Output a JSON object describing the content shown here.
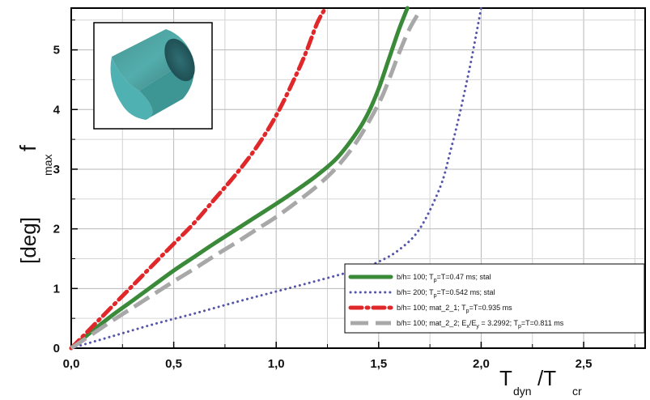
{
  "chart_data": {
    "type": "line",
    "xlabel": {
      "main": "T",
      "sub1": "dyn",
      "mid": "/T",
      "sub2": "cr"
    },
    "ylabel": {
      "main": "f",
      "sub": "max",
      "unit": "[deg]"
    },
    "xlim": [
      0,
      2.8
    ],
    "ylim": [
      0,
      5.7
    ],
    "x_ticks": [
      "0,0",
      "0,5",
      "1,0",
      "1,5",
      "2,0",
      "2,5"
    ],
    "y_ticks": [
      "0",
      "1",
      "2",
      "3",
      "4",
      "5"
    ],
    "grid": true,
    "legend_position": "bottom-right",
    "inset_image": "teal-cylinder-shell",
    "series": [
      {
        "name": "b/h= 100; Tp=T=0.47 ms; stal",
        "legend_parts": [
          "b/h= 100; T",
          "p",
          "=T=0.47 ms; stal"
        ],
        "color": "#3a8a3a",
        "style": "solid",
        "x": [
          0,
          0.1,
          0.2,
          0.3,
          0.4,
          0.5,
          0.6,
          0.7,
          0.8,
          0.9,
          1.0,
          1.1,
          1.2,
          1.3,
          1.4,
          1.45,
          1.5,
          1.55,
          1.6,
          1.64
        ],
        "y": [
          0,
          0.28,
          0.55,
          0.8,
          1.05,
          1.3,
          1.53,
          1.76,
          1.98,
          2.2,
          2.42,
          2.65,
          2.9,
          3.2,
          3.65,
          3.95,
          4.35,
          4.85,
          5.35,
          5.7
        ]
      },
      {
        "name": "b/h= 200; Tp=T=0.542 ms; stal",
        "legend_parts": [
          "b/h= 200; T",
          "p",
          "=T=0.542 ms; stal"
        ],
        "color": "#5555aa",
        "style": "dotted",
        "x": [
          0,
          0.2,
          0.4,
          0.6,
          0.8,
          1.0,
          1.2,
          1.4,
          1.5,
          1.6,
          1.7,
          1.8,
          1.85,
          1.9,
          1.95,
          2.0
        ],
        "y": [
          0,
          0.2,
          0.4,
          0.58,
          0.77,
          0.95,
          1.13,
          1.32,
          1.45,
          1.65,
          2.0,
          2.7,
          3.3,
          4.0,
          4.8,
          5.7
        ]
      },
      {
        "name": "b/h= 100; mat_2_1; Tp=T=0.935 ms",
        "legend_parts": [
          "b/h= 100; mat_2_1; T",
          "p",
          "=T=0.935 ms"
        ],
        "color": "#e0282a",
        "style": "dashdot",
        "x": [
          0,
          0.1,
          0.2,
          0.3,
          0.4,
          0.5,
          0.6,
          0.7,
          0.8,
          0.9,
          1.0,
          1.1,
          1.15,
          1.2,
          1.24
        ],
        "y": [
          0,
          0.35,
          0.7,
          1.05,
          1.4,
          1.75,
          2.1,
          2.5,
          2.9,
          3.35,
          3.9,
          4.6,
          5.0,
          5.45,
          5.7
        ]
      },
      {
        "name": "b/h= 100; mat_2_2; Ex/Ey = 3.2992; Tp=T=0.811 ms",
        "legend_parts": [
          "b/h= 100; mat_2_2; E",
          "x",
          "/E",
          "y",
          " = 3.2992; T",
          "p",
          "=T=0.811 ms"
        ],
        "color": "#a8a8a8",
        "style": "longdash",
        "x": [
          0,
          0.1,
          0.2,
          0.3,
          0.4,
          0.5,
          0.6,
          0.7,
          0.8,
          0.9,
          1.0,
          1.1,
          1.2,
          1.3,
          1.4,
          1.5,
          1.55,
          1.6,
          1.65,
          1.7
        ],
        "y": [
          0,
          0.23,
          0.46,
          0.68,
          0.9,
          1.12,
          1.33,
          1.55,
          1.76,
          1.98,
          2.2,
          2.45,
          2.72,
          3.05,
          3.5,
          4.1,
          4.5,
          4.95,
          5.35,
          5.65
        ]
      }
    ]
  }
}
